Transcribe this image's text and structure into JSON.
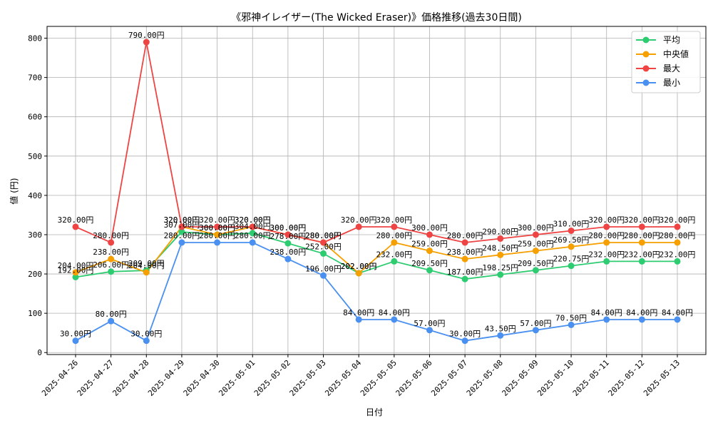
{
  "chart_data": {
    "type": "line",
    "title": "《邪神イレイザー(The Wicked Eraser)》価格推移(過去30日間)",
    "xlabel": "日付",
    "ylabel": "値 (円)",
    "ylim": [
      -5,
      830
    ],
    "yticks": [
      0,
      100,
      200,
      300,
      400,
      500,
      600,
      700,
      800
    ],
    "grid": true,
    "legend_position": "top-right",
    "categories": [
      "2025-04-26",
      "2025-04-27",
      "2025-04-28",
      "2025-04-29",
      "2025-04-30",
      "2025-05-01",
      "2025-05-02",
      "2025-05-03",
      "2025-05-04",
      "2025-05-05",
      "2025-05-06",
      "2025-05-07",
      "2025-05-08",
      "2025-05-09",
      "2025-05-10",
      "2025-05-11",
      "2025-05-12",
      "2025-05-13"
    ],
    "series": [
      {
        "name": "平均",
        "color": "#2ecc71",
        "values": [
          192,
          206,
          209,
          307,
          300,
          304,
          278,
          252,
          202,
          232,
          209.5,
          187,
          198.25,
          209.5,
          220.75,
          232,
          232,
          232
        ],
        "labels": [
          "192.00円",
          "206.00円",
          "209.00円",
          "307.00円",
          "300.00円",
          "304.00円",
          "278.00円",
          "252.00円",
          "202.00円",
          "232.00円",
          "209.50円",
          "187.00円",
          "198.25円",
          "209.50円",
          "220.75円",
          "232.00円",
          "232.00円",
          "232.00円"
        ]
      },
      {
        "name": "中央値",
        "color": "#f5a000",
        "values": [
          204,
          238,
          204,
          320,
          300,
          320,
          300,
          280,
          202,
          280,
          259,
          238,
          248.5,
          259,
          269.5,
          280,
          280,
          280
        ],
        "labels": [
          "204.00円",
          "238.00円",
          "204.00円",
          "320.00円",
          "300.00円",
          "320.00円",
          "300.00円",
          "280.00円",
          "202.00円",
          "280.00円",
          "259.00円",
          "238.00円",
          "248.50円",
          "259.00円",
          "269.50円",
          "280.00円",
          "280.00円",
          "280.00円"
        ]
      },
      {
        "name": "最大",
        "color": "#ef4444",
        "values": [
          320,
          280,
          790,
          320,
          320,
          320,
          300,
          280,
          320,
          320,
          300,
          280,
          290,
          300,
          310,
          320,
          320,
          320
        ],
        "labels": [
          "320.00円",
          "280.00円",
          "790.00円",
          "320.00円",
          "320.00円",
          "320.00円",
          "300.00円",
          "280.00円",
          "320.00円",
          "320.00円",
          "300.00円",
          "280.00円",
          "290.00円",
          "300.00円",
          "310.00円",
          "320.00円",
          "320.00円",
          "320.00円"
        ]
      },
      {
        "name": "最小",
        "color": "#4a90f0",
        "values": [
          30,
          80,
          30,
          280,
          280,
          280,
          238,
          196,
          84,
          84,
          57,
          30,
          43.5,
          57,
          70.5,
          84,
          84,
          84
        ],
        "labels": [
          "30.00円",
          "80.00円",
          "30.00円",
          "280.00円",
          "280.00円",
          "280.00円",
          "238.00円",
          "196.00円",
          "84.00円",
          "84.00円",
          "57.00円",
          "30.00円",
          "43.50円",
          "57.00円",
          "70.50円",
          "84.00円",
          "84.00円",
          "84.00円"
        ]
      }
    ]
  }
}
